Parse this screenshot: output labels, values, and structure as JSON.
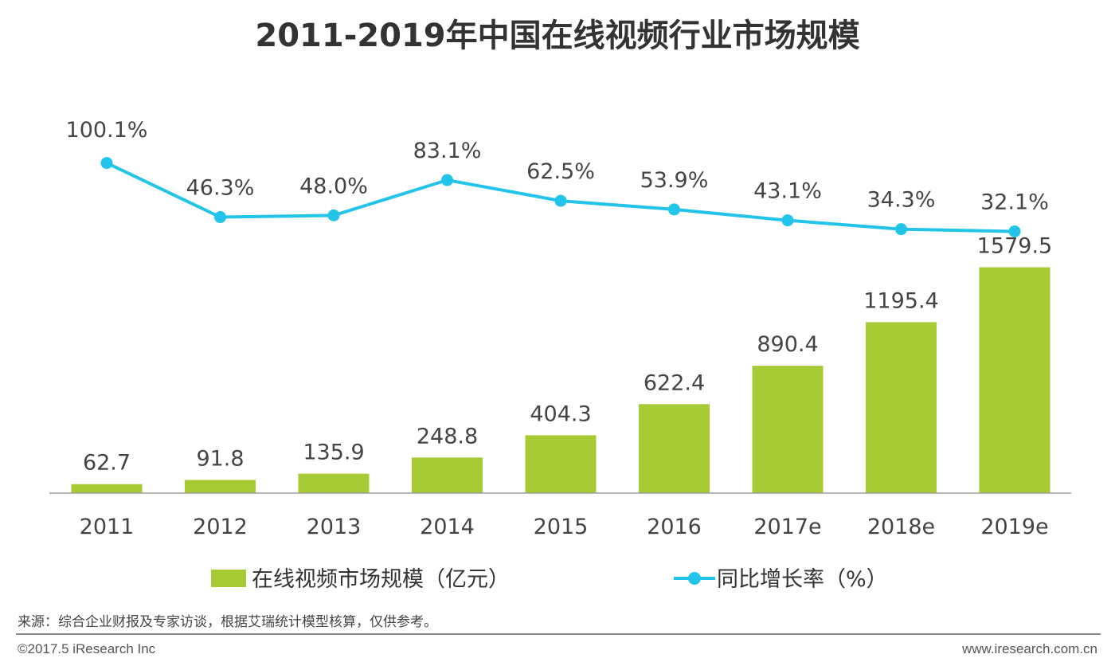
{
  "header": {
    "title": "2011-2019年中国在线视频行业市场规模"
  },
  "chart_data": {
    "type": "bar",
    "categories": [
      "2011",
      "2012",
      "2013",
      "2014",
      "2015",
      "2016",
      "2017e",
      "2018e",
      "2019e"
    ],
    "series": [
      {
        "name": "在线视频市场规模（亿元）",
        "type": "bar",
        "values": [
          62.7,
          91.8,
          135.9,
          248.8,
          404.3,
          622.4,
          890.4,
          1195.4,
          1579.5
        ]
      },
      {
        "name": "同比增长率（%）",
        "type": "line",
        "values": [
          100.1,
          46.3,
          48.0,
          83.1,
          62.5,
          53.9,
          43.1,
          34.3,
          32.1
        ],
        "labels": [
          "100.1%",
          "46.3%",
          "48.0%",
          "83.1%",
          "62.5%",
          "53.9%",
          "43.1%",
          "34.3%",
          "32.1%"
        ]
      }
    ],
    "bar_labels": [
      "62.7",
      "91.8",
      "135.9",
      "248.8",
      "404.3",
      "622.4",
      "890.4",
      "1195.4",
      "1579.5"
    ],
    "colors": {
      "bar": "#a6cb34",
      "line": "#22c4ea",
      "axis": "#9e9e9e",
      "text": "#444444"
    },
    "legend": {
      "placement": "bottom",
      "items": [
        {
          "label": "在线视频市场规模（亿元）",
          "kind": "bar"
        },
        {
          "label": "同比增长率（%）",
          "kind": "line"
        }
      ]
    },
    "grid": false
  },
  "footer": {
    "source": "来源：综合企业财报及专家访谈，根据艾瑞统计模型核算，仅供参考。",
    "copyright": "©2017.5 iResearch Inc",
    "website": "www.iresearch.com.cn"
  }
}
